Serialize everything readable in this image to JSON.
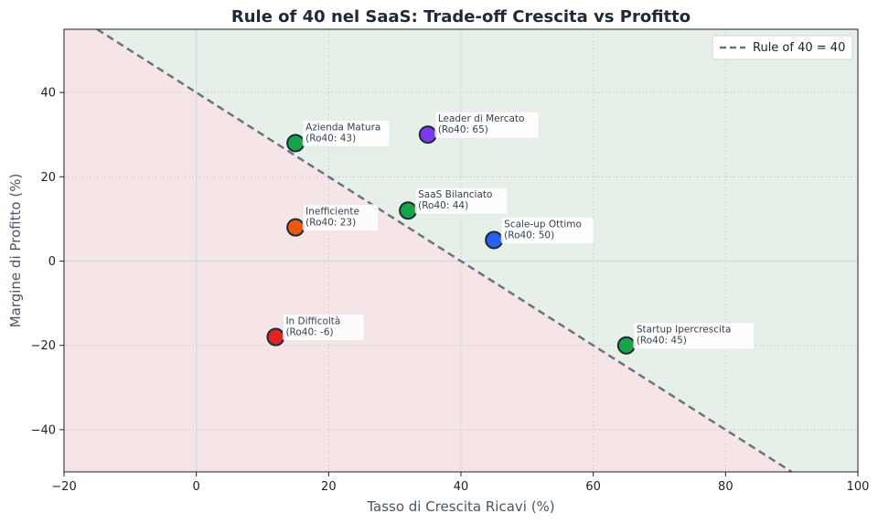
{
  "chart_data": {
    "type": "scatter",
    "title": "Rule of 40 nel SaaS: Trade-off Crescita vs Profitto",
    "xlabel": "Tasso di Crescita Ricavi (%)",
    "ylabel": "Margine di Profitto (%)",
    "xlim": [
      -20,
      100
    ],
    "ylim": [
      -50,
      55
    ],
    "xticks": [
      "−20",
      "0",
      "20",
      "40",
      "60",
      "80",
      "100"
    ],
    "yticks": [
      "−40",
      "−20",
      "0",
      "20",
      "40"
    ],
    "grid": true,
    "legend": {
      "placement": "top-right",
      "entries": [
        "Rule of 40 = 40"
      ]
    },
    "rule_line": {
      "sum": 40,
      "color": "#6b7280"
    },
    "regions": {
      "above_color": "#e6f0e8",
      "below_color": "#f6e5e7"
    },
    "points": [
      {
        "label": "Azienda Matura",
        "sub": "(Ro40: 43)",
        "x": 15,
        "y": 28,
        "color": "#16a34a"
      },
      {
        "label": "Leader di Mercato",
        "sub": "(Ro40: 65)",
        "x": 35,
        "y": 30,
        "color": "#7c3aed"
      },
      {
        "label": "SaaS Bilanciato",
        "sub": "(Ro40: 44)",
        "x": 32,
        "y": 12,
        "color": "#16a34a"
      },
      {
        "label": "Inefficiente",
        "sub": "(Ro40: 23)",
        "x": 15,
        "y": 8,
        "color": "#ea580c"
      },
      {
        "label": "Scale-up Ottimo",
        "sub": "(Ro40: 50)",
        "x": 45,
        "y": 5,
        "color": "#2563eb"
      },
      {
        "label": "In Difficoltà",
        "sub": "(Ro40: -6)",
        "x": 12,
        "y": -18,
        "color": "#dc2626"
      },
      {
        "label": "Startup Ipercrescita",
        "sub": "(Ro40: 45)",
        "x": 65,
        "y": -20,
        "color": "#16a34a"
      }
    ]
  }
}
